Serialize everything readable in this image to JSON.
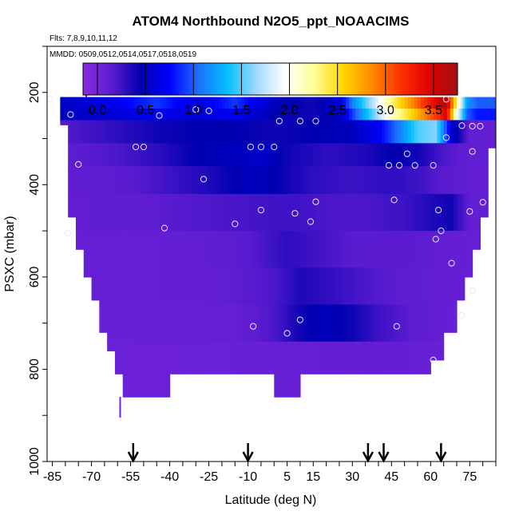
{
  "chart_data": {
    "type": "heatmap",
    "title": "ATOM4 Northbound N2O5_ppt_NOAACIMS",
    "subtitle_flights": "Flts: 7,8,9,10,11,12",
    "subtitle_dates": "MMDD: 0509,0512,0514,0517,0518,0519",
    "xlabel": "Latitude (deg N)",
    "ylabel": "PSXC (mbar)",
    "xlim": [
      -87,
      85
    ],
    "ylim": [
      1000,
      100
    ],
    "x_ticks": [
      "-85",
      "-70",
      "-55",
      "-40",
      "-25",
      "-10",
      "5",
      "15",
      "30",
      "45",
      "60",
      "75"
    ],
    "y_ticks": [
      "200",
      "400",
      "600",
      "800",
      "1000"
    ],
    "colorbar": {
      "range": [
        -0.15,
        3.75
      ],
      "tick_labels": [
        "0.0",
        "0.5",
        "1.0",
        "1.5",
        "2.0",
        "2.5",
        "3.0",
        "3.5"
      ],
      "colors": [
        "#8a2be2",
        "#5b1bd0",
        "#0000b0",
        "#0000ff",
        "#1e6fff",
        "#00bfff",
        "#9fd8ff",
        "#ffffff",
        "#ffff99",
        "#ffd700",
        "#ff8c00",
        "#ff3300",
        "#e00000",
        "#a01010"
      ]
    },
    "flight_markers_lat": [
      -54,
      -10,
      36,
      42,
      64
    ],
    "columns": [
      {
        "lat": -85,
        "pmax": 210
      },
      {
        "lat": -82,
        "pmax": 270
      },
      {
        "lat": -79,
        "pmax": 470
      },
      {
        "lat": -76,
        "pmax": 540
      },
      {
        "lat": -73,
        "pmax": 600
      },
      {
        "lat": -70,
        "pmax": 650
      },
      {
        "lat": -67,
        "pmax": 720
      },
      {
        "lat": -64,
        "pmax": 760
      },
      {
        "lat": -61,
        "pmax": 810
      },
      {
        "lat": -58,
        "pmax": 860
      },
      {
        "lat": -55,
        "pmax": 860
      },
      {
        "lat": -50,
        "pmax": 860
      },
      {
        "lat": -45,
        "pmax": 860
      },
      {
        "lat": -40,
        "pmax": 810
      },
      {
        "lat": -35,
        "pmax": 810
      },
      {
        "lat": -30,
        "pmax": 810
      },
      {
        "lat": -25,
        "pmax": 810
      },
      {
        "lat": -20,
        "pmax": 810
      },
      {
        "lat": -15,
        "pmax": 810
      },
      {
        "lat": -10,
        "pmax": 810
      },
      {
        "lat": -5,
        "pmax": 810
      },
      {
        "lat": 0,
        "pmax": 860
      },
      {
        "lat": 5,
        "pmax": 860
      },
      {
        "lat": 10,
        "pmax": 810
      },
      {
        "lat": 15,
        "pmax": 810
      },
      {
        "lat": 20,
        "pmax": 810
      },
      {
        "lat": 25,
        "pmax": 810
      },
      {
        "lat": 30,
        "pmax": 810
      },
      {
        "lat": 35,
        "pmax": 810
      },
      {
        "lat": 40,
        "pmax": 810
      },
      {
        "lat": 45,
        "pmax": 810
      },
      {
        "lat": 50,
        "pmax": 810
      },
      {
        "lat": 55,
        "pmax": 810
      },
      {
        "lat": 60,
        "pmax": 780
      },
      {
        "lat": 65,
        "pmax": 720
      },
      {
        "lat": 70,
        "pmax": 650
      },
      {
        "lat": 73,
        "pmax": 600
      },
      {
        "lat": 76,
        "pmax": 540
      },
      {
        "lat": 79,
        "pmax": 470
      },
      {
        "lat": 82,
        "pmax": 320
      }
    ],
    "layers": [
      {
        "p": [
          210,
          235
        ],
        "v": [
          [
            -85,
            0.5
          ],
          [
            -60,
            0.7
          ],
          [
            -45,
            0.9
          ],
          [
            -30,
            0.6
          ],
          [
            -15,
            0.9
          ],
          [
            0,
            0.5
          ],
          [
            15,
            0.4
          ],
          [
            25,
            0.6
          ],
          [
            30,
            1.1
          ],
          [
            35,
            1.5
          ],
          [
            40,
            1.9
          ],
          [
            45,
            2.3
          ],
          [
            52,
            2.8
          ],
          [
            58,
            3.2
          ],
          [
            63,
            3.5
          ],
          [
            66,
            3.7
          ],
          [
            70,
            2.3
          ],
          [
            74,
            1.2
          ],
          [
            78,
            1.0
          ]
        ]
      },
      {
        "p": [
          235,
          260
        ],
        "v": [
          [
            -85,
            0.5
          ],
          [
            -60,
            0.6
          ],
          [
            -45,
            0.7
          ],
          [
            -30,
            0.6
          ],
          [
            -15,
            0.7
          ],
          [
            0,
            0.45
          ],
          [
            15,
            0.4
          ],
          [
            25,
            0.5
          ],
          [
            30,
            0.9
          ],
          [
            35,
            1.3
          ],
          [
            40,
            1.7
          ],
          [
            45,
            2.1
          ],
          [
            52,
            2.5
          ],
          [
            58,
            2.9
          ],
          [
            63,
            3.2
          ],
          [
            66,
            3.5
          ],
          [
            70,
            2.0
          ],
          [
            74,
            1.0
          ],
          [
            78,
            0.8
          ]
        ]
      },
      {
        "p": [
          260,
          310
        ],
        "v": [
          [
            -85,
            0.15
          ],
          [
            -60,
            0.3
          ],
          [
            -45,
            0.4
          ],
          [
            -30,
            0.45
          ],
          [
            -15,
            0.45
          ],
          [
            0,
            0.4
          ],
          [
            15,
            0.45
          ],
          [
            30,
            0.5
          ],
          [
            40,
            0.7
          ],
          [
            48,
            1.1
          ],
          [
            55,
            1.5
          ],
          [
            62,
            1.6
          ],
          [
            68,
            0.6
          ],
          [
            75,
            0.1
          ]
        ]
      },
      {
        "p": [
          310,
          360
        ],
        "v": [
          [
            -85,
            0.1
          ],
          [
            -60,
            0.2
          ],
          [
            -45,
            0.3
          ],
          [
            -30,
            0.45
          ],
          [
            -15,
            0.5
          ],
          [
            -5,
            0.55
          ],
          [
            5,
            0.4
          ],
          [
            20,
            0.3
          ],
          [
            35,
            0.35
          ],
          [
            45,
            0.45
          ],
          [
            55,
            0.4
          ],
          [
            65,
            0.2
          ],
          [
            75,
            0.1
          ]
        ]
      },
      {
        "p": [
          360,
          420
        ],
        "v": [
          [
            -85,
            0.1
          ],
          [
            -55,
            0.15
          ],
          [
            -40,
            0.25
          ],
          [
            -25,
            0.35
          ],
          [
            -10,
            0.5
          ],
          [
            0,
            0.45
          ],
          [
            15,
            0.3
          ],
          [
            30,
            0.25
          ],
          [
            45,
            0.3
          ],
          [
            55,
            0.25
          ],
          [
            65,
            0.15
          ],
          [
            75,
            0.1
          ]
        ]
      },
      {
        "p": [
          420,
          500
        ],
        "v": [
          [
            -85,
            0.1
          ],
          [
            -50,
            0.12
          ],
          [
            -30,
            0.18
          ],
          [
            -10,
            0.22
          ],
          [
            5,
            0.25
          ],
          [
            20,
            0.2
          ],
          [
            35,
            0.2
          ],
          [
            50,
            0.25
          ],
          [
            60,
            0.35
          ],
          [
            68,
            0.4
          ],
          [
            75,
            0.1
          ]
        ]
      },
      {
        "p": [
          500,
          580
        ],
        "v": [
          [
            -85,
            0.08
          ],
          [
            -50,
            0.08
          ],
          [
            -30,
            0.1
          ],
          [
            -10,
            0.15
          ],
          [
            5,
            0.3
          ],
          [
            15,
            0.25
          ],
          [
            30,
            0.15
          ],
          [
            50,
            0.15
          ],
          [
            65,
            0.1
          ],
          [
            75,
            0.08
          ]
        ]
      },
      {
        "p": [
          580,
          660
        ],
        "v": [
          [
            -85,
            0.08
          ],
          [
            -50,
            0.08
          ],
          [
            -20,
            0.1
          ],
          [
            0,
            0.2
          ],
          [
            10,
            0.35
          ],
          [
            20,
            0.3
          ],
          [
            35,
            0.2
          ],
          [
            50,
            0.12
          ],
          [
            75,
            0.08
          ]
        ]
      },
      {
        "p": [
          660,
          740
        ],
        "v": [
          [
            -85,
            0.06
          ],
          [
            -40,
            0.06
          ],
          [
            -15,
            0.08
          ],
          [
            0,
            0.2
          ],
          [
            10,
            0.4
          ],
          [
            20,
            0.5
          ],
          [
            30,
            0.4
          ],
          [
            40,
            0.25
          ],
          [
            55,
            0.12
          ],
          [
            75,
            0.06
          ]
        ]
      },
      {
        "p": [
          740,
          870
        ],
        "v": [
          [
            -85,
            0.04
          ],
          [
            -40,
            0.05
          ],
          [
            -10,
            0.06
          ],
          [
            10,
            0.08
          ],
          [
            40,
            0.1
          ],
          [
            75,
            0.05
          ]
        ]
      }
    ],
    "points": [
      {
        "lat": -86,
        "p": 215
      },
      {
        "lat": -78,
        "p": 248
      },
      {
        "lat": -44,
        "p": 250
      },
      {
        "lat": -30,
        "p": 237
      },
      {
        "lat": -25,
        "p": 240
      },
      {
        "lat": 2,
        "p": 262
      },
      {
        "lat": 10,
        "p": 262
      },
      {
        "lat": 16,
        "p": 262
      },
      {
        "lat": -53,
        "p": 318
      },
      {
        "lat": -50,
        "p": 318
      },
      {
        "lat": -9,
        "p": 318
      },
      {
        "lat": -5,
        "p": 318
      },
      {
        "lat": 0,
        "p": 318
      },
      {
        "lat": -75,
        "p": 356
      },
      {
        "lat": 44,
        "p": 358
      },
      {
        "lat": 48,
        "p": 358
      },
      {
        "lat": 54,
        "p": 358
      },
      {
        "lat": 61,
        "p": 358
      },
      {
        "lat": 51,
        "p": 333
      },
      {
        "lat": 66,
        "p": 298
      },
      {
        "lat": 72,
        "p": 272
      },
      {
        "lat": 76,
        "p": 273
      },
      {
        "lat": 79,
        "p": 273
      },
      {
        "lat": 76,
        "p": 328
      },
      {
        "lat": -27,
        "p": 388
      },
      {
        "lat": 46,
        "p": 433
      },
      {
        "lat": 16,
        "p": 437
      },
      {
        "lat": -5,
        "p": 455
      },
      {
        "lat": 8,
        "p": 462
      },
      {
        "lat": 14,
        "p": 480
      },
      {
        "lat": -15,
        "p": 485
      },
      {
        "lat": 75,
        "p": 458
      },
      {
        "lat": 63,
        "p": 455
      },
      {
        "lat": 80,
        "p": 438
      },
      {
        "lat": -79,
        "p": 505
      },
      {
        "lat": -42,
        "p": 494
      },
      {
        "lat": 64,
        "p": 500
      },
      {
        "lat": 62,
        "p": 518
      },
      {
        "lat": 68,
        "p": 570
      },
      {
        "lat": 76,
        "p": 630
      },
      {
        "lat": 72,
        "p": 683
      },
      {
        "lat": 10,
        "p": 693
      },
      {
        "lat": -8,
        "p": 707
      },
      {
        "lat": 47,
        "p": 707
      },
      {
        "lat": 5,
        "p": 722
      },
      {
        "lat": 61,
        "p": 780
      },
      {
        "lat": 66,
        "p": 215
      }
    ],
    "grid": false
  }
}
